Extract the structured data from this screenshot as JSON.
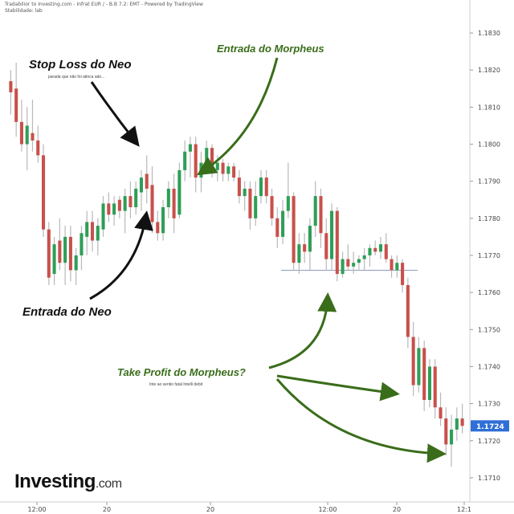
{
  "header": {
    "line1": "Tradabilior to Investing.com - Infrat EUR / - B.B 7.2: EMT - Powered by TradingView",
    "line2": "Stabilidade: lab"
  },
  "brand": {
    "name": "Investing",
    "suffix": ".com"
  },
  "annotations": {
    "stop_loss": "Stop Loss do Neo",
    "stop_loss_sub": "parada que não foi atinca ado...",
    "entrada_morpheus": "Entrada do Morpheus",
    "entrada_neo": "Entrada do Neo",
    "take_profit": "Take Profit do Morpheus?",
    "take_profit_sub": "Inte ao sentio fatal Intelli debit"
  },
  "price_tag": "1.1724",
  "chart_data": {
    "type": "candlestick",
    "title": "",
    "xlabel": "",
    "ylabel": "",
    "ylim": [
      1.1705,
      1.1835
    ],
    "y_ticks": [
      "1.1830",
      "1.1820",
      "1.1810",
      "1.1800",
      "1.1790",
      "1.1780",
      "1.1770",
      "1.1760",
      "1.1750",
      "1.1740",
      "1.1730",
      "1.1720",
      "1.1710"
    ],
    "x_ticks": [
      "12:00",
      "20",
      "20",
      "12:00",
      "20",
      "12:1"
    ],
    "current_price": 1.1724,
    "support_line": 1.1766,
    "up_color": "#2e9e57",
    "down_color": "#c8504b",
    "wick_color": "#b8b8b8",
    "annotation_color_green": "#3a6d1a",
    "annotation_color_black": "#111111",
    "candles": [
      {
        "o": 1.1817,
        "h": 1.182,
        "l": 1.1808,
        "c": 1.1814
      },
      {
        "o": 1.1815,
        "h": 1.1822,
        "l": 1.1802,
        "c": 1.1806
      },
      {
        "o": 1.1806,
        "h": 1.1812,
        "l": 1.1798,
        "c": 1.18
      },
      {
        "o": 1.18,
        "h": 1.181,
        "l": 1.1793,
        "c": 1.1805
      },
      {
        "o": 1.1803,
        "h": 1.1812,
        "l": 1.1798,
        "c": 1.1801
      },
      {
        "o": 1.1801,
        "h": 1.1805,
        "l": 1.1795,
        "c": 1.1797
      },
      {
        "o": 1.1797,
        "h": 1.18,
        "l": 1.1775,
        "c": 1.1777
      },
      {
        "o": 1.1777,
        "h": 1.1779,
        "l": 1.1762,
        "c": 1.1764
      },
      {
        "o": 1.1765,
        "h": 1.1775,
        "l": 1.1762,
        "c": 1.1773
      },
      {
        "o": 1.1774,
        "h": 1.178,
        "l": 1.1766,
        "c": 1.1768
      },
      {
        "o": 1.1768,
        "h": 1.1778,
        "l": 1.1762,
        "c": 1.1775
      },
      {
        "o": 1.1775,
        "h": 1.1778,
        "l": 1.1763,
        "c": 1.1766
      },
      {
        "o": 1.1766,
        "h": 1.1772,
        "l": 1.1762,
        "c": 1.177
      },
      {
        "o": 1.177,
        "h": 1.1778,
        "l": 1.1766,
        "c": 1.1776
      },
      {
        "o": 1.1775,
        "h": 1.1782,
        "l": 1.177,
        "c": 1.1779
      },
      {
        "o": 1.1779,
        "h": 1.1782,
        "l": 1.1771,
        "c": 1.1774
      },
      {
        "o": 1.1774,
        "h": 1.178,
        "l": 1.177,
        "c": 1.1778
      },
      {
        "o": 1.1777,
        "h": 1.1786,
        "l": 1.1775,
        "c": 1.1784
      },
      {
        "o": 1.1784,
        "h": 1.1787,
        "l": 1.1779,
        "c": 1.1781
      },
      {
        "o": 1.1781,
        "h": 1.1786,
        "l": 1.1778,
        "c": 1.1784
      },
      {
        "o": 1.1785,
        "h": 1.1786,
        "l": 1.178,
        "c": 1.1782
      },
      {
        "o": 1.1782,
        "h": 1.1788,
        "l": 1.1776,
        "c": 1.1786
      },
      {
        "o": 1.1786,
        "h": 1.179,
        "l": 1.178,
        "c": 1.1783
      },
      {
        "o": 1.1783,
        "h": 1.179,
        "l": 1.1781,
        "c": 1.1788
      },
      {
        "o": 1.1787,
        "h": 1.1793,
        "l": 1.1782,
        "c": 1.1791
      },
      {
        "o": 1.1792,
        "h": 1.1797,
        "l": 1.1784,
        "c": 1.1788
      },
      {
        "o": 1.1789,
        "h": 1.1794,
        "l": 1.1776,
        "c": 1.1779
      },
      {
        "o": 1.1779,
        "h": 1.1782,
        "l": 1.1774,
        "c": 1.1776
      },
      {
        "o": 1.1776,
        "h": 1.1785,
        "l": 1.1774,
        "c": 1.1783
      },
      {
        "o": 1.1783,
        "h": 1.179,
        "l": 1.178,
        "c": 1.1788
      },
      {
        "o": 1.1788,
        "h": 1.1792,
        "l": 1.1776,
        "c": 1.178
      },
      {
        "o": 1.1781,
        "h": 1.1795,
        "l": 1.178,
        "c": 1.1793
      },
      {
        "o": 1.1793,
        "h": 1.1801,
        "l": 1.179,
        "c": 1.1798
      },
      {
        "o": 1.1798,
        "h": 1.1802,
        "l": 1.1791,
        "c": 1.18
      },
      {
        "o": 1.18,
        "h": 1.1802,
        "l": 1.1787,
        "c": 1.1791
      },
      {
        "o": 1.1791,
        "h": 1.1798,
        "l": 1.1787,
        "c": 1.1795
      },
      {
        "o": 1.1794,
        "h": 1.1801,
        "l": 1.1793,
        "c": 1.1799
      },
      {
        "o": 1.1799,
        "h": 1.18,
        "l": 1.1791,
        "c": 1.1793
      },
      {
        "o": 1.1793,
        "h": 1.1797,
        "l": 1.179,
        "c": 1.1795
      },
      {
        "o": 1.1795,
        "h": 1.1796,
        "l": 1.179,
        "c": 1.1792
      },
      {
        "o": 1.1792,
        "h": 1.1795,
        "l": 1.179,
        "c": 1.1794
      },
      {
        "o": 1.1794,
        "h": 1.1795,
        "l": 1.179,
        "c": 1.1791
      },
      {
        "o": 1.1791,
        "h": 1.1793,
        "l": 1.1784,
        "c": 1.1786
      },
      {
        "o": 1.1786,
        "h": 1.179,
        "l": 1.1782,
        "c": 1.1788
      },
      {
        "o": 1.1788,
        "h": 1.179,
        "l": 1.1777,
        "c": 1.178
      },
      {
        "o": 1.178,
        "h": 1.179,
        "l": 1.1778,
        "c": 1.1786
      },
      {
        "o": 1.1786,
        "h": 1.1793,
        "l": 1.1784,
        "c": 1.1791
      },
      {
        "o": 1.1791,
        "h": 1.1793,
        "l": 1.1784,
        "c": 1.1786
      },
      {
        "o": 1.1786,
        "h": 1.1788,
        "l": 1.1778,
        "c": 1.178
      },
      {
        "o": 1.178,
        "h": 1.1783,
        "l": 1.1772,
        "c": 1.1775
      },
      {
        "o": 1.1775,
        "h": 1.1785,
        "l": 1.1773,
        "c": 1.1782
      },
      {
        "o": 1.1782,
        "h": 1.1795,
        "l": 1.178,
        "c": 1.1786
      },
      {
        "o": 1.1786,
        "h": 1.1787,
        "l": 1.1766,
        "c": 1.1768
      },
      {
        "o": 1.1768,
        "h": 1.1776,
        "l": 1.1765,
        "c": 1.1773
      },
      {
        "o": 1.1773,
        "h": 1.1776,
        "l": 1.1768,
        "c": 1.1771
      },
      {
        "o": 1.1771,
        "h": 1.178,
        "l": 1.1766,
        "c": 1.1778
      },
      {
        "o": 1.1778,
        "h": 1.179,
        "l": 1.1775,
        "c": 1.1786
      },
      {
        "o": 1.1786,
        "h": 1.1788,
        "l": 1.1772,
        "c": 1.1776
      },
      {
        "o": 1.1776,
        "h": 1.178,
        "l": 1.1766,
        "c": 1.1769
      },
      {
        "o": 1.1769,
        "h": 1.1784,
        "l": 1.1766,
        "c": 1.1782
      },
      {
        "o": 1.1782,
        "h": 1.1783,
        "l": 1.1763,
        "c": 1.1765
      },
      {
        "o": 1.1765,
        "h": 1.1771,
        "l": 1.1764,
        "c": 1.1769
      },
      {
        "o": 1.1769,
        "h": 1.1773,
        "l": 1.1766,
        "c": 1.1767
      },
      {
        "o": 1.1767,
        "h": 1.1771,
        "l": 1.1765,
        "c": 1.1768
      },
      {
        "o": 1.1768,
        "h": 1.177,
        "l": 1.1766,
        "c": 1.1769
      },
      {
        "o": 1.1769,
        "h": 1.1772,
        "l": 1.1766,
        "c": 1.177
      },
      {
        "o": 1.177,
        "h": 1.1773,
        "l": 1.1767,
        "c": 1.1772
      },
      {
        "o": 1.1772,
        "h": 1.1774,
        "l": 1.177,
        "c": 1.1771
      },
      {
        "o": 1.1771,
        "h": 1.1775,
        "l": 1.1769,
        "c": 1.1773
      },
      {
        "o": 1.1773,
        "h": 1.1776,
        "l": 1.1768,
        "c": 1.1769
      },
      {
        "o": 1.1769,
        "h": 1.177,
        "l": 1.1764,
        "c": 1.1766
      },
      {
        "o": 1.1766,
        "h": 1.177,
        "l": 1.1764,
        "c": 1.1768
      },
      {
        "o": 1.1768,
        "h": 1.1769,
        "l": 1.176,
        "c": 1.1762
      },
      {
        "o": 1.1762,
        "h": 1.1764,
        "l": 1.1745,
        "c": 1.1748
      },
      {
        "o": 1.1748,
        "h": 1.1752,
        "l": 1.1732,
        "c": 1.1735
      },
      {
        "o": 1.1735,
        "h": 1.1748,
        "l": 1.1733,
        "c": 1.1745
      },
      {
        "o": 1.1745,
        "h": 1.1747,
        "l": 1.1728,
        "c": 1.1731
      },
      {
        "o": 1.1731,
        "h": 1.1742,
        "l": 1.1729,
        "c": 1.174
      },
      {
        "o": 1.174,
        "h": 1.1742,
        "l": 1.1726,
        "c": 1.1729
      },
      {
        "o": 1.1729,
        "h": 1.1733,
        "l": 1.1724,
        "c": 1.1726
      },
      {
        "o": 1.1726,
        "h": 1.1729,
        "l": 1.1716,
        "c": 1.1719
      },
      {
        "o": 1.1719,
        "h": 1.1727,
        "l": 1.1713,
        "c": 1.1723
      },
      {
        "o": 1.1723,
        "h": 1.1729,
        "l": 1.172,
        "c": 1.1726
      },
      {
        "o": 1.1726,
        "h": 1.173,
        "l": 1.1722,
        "c": 1.1724
      }
    ]
  }
}
